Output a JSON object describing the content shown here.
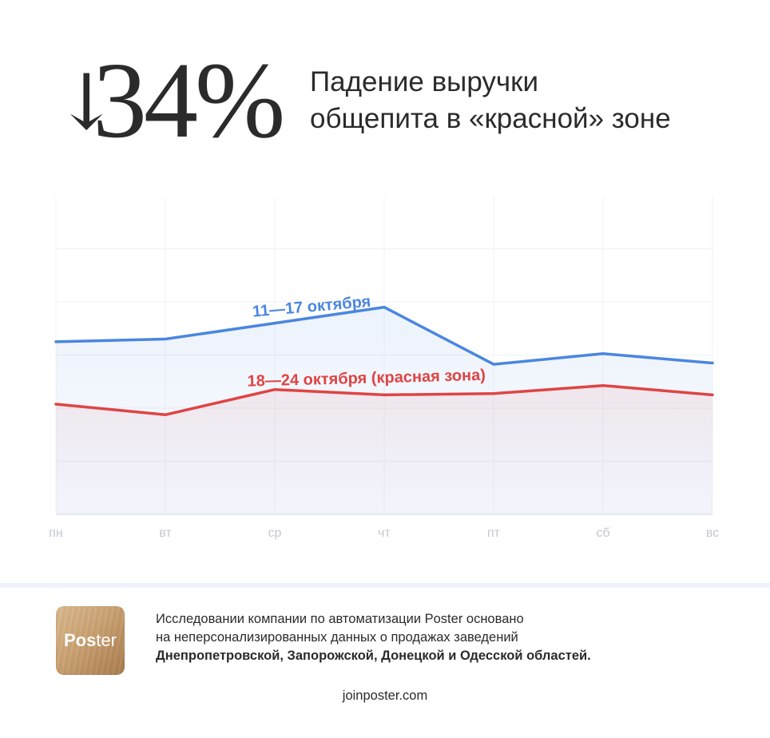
{
  "headline": {
    "arrow": "↓",
    "value": "34%",
    "title_line1": "Падение выручки",
    "title_line2": "общепита в «красной» зоне"
  },
  "chart_data": {
    "type": "line",
    "categories": [
      "пн",
      "вт",
      "ср",
      "чт",
      "пт",
      "сб",
      "вс"
    ],
    "series": [
      {
        "name": "11—17 октября",
        "color": "#4a86e0",
        "values": [
          50,
          52,
          64,
          76,
          33,
          41,
          34
        ]
      },
      {
        "name": "18—24 октября (красная зона)",
        "color": "#df4444",
        "values": [
          3,
          -5,
          14,
          10,
          11,
          17,
          10
        ]
      }
    ],
    "ylim": [
      -80,
      160
    ],
    "grid": true,
    "legend": "inline labels"
  },
  "footer": {
    "logo_text_bold": "Pos",
    "logo_text_light": "ter",
    "note_line1": "Исследовании компании по автоматизации Poster основано",
    "note_line2": "на неперсонализированных данных о продажах заведений",
    "note_line3": "Днепропетровской, Запорожской, Донецкой и Одесской областей.",
    "site": "joinposter.com"
  }
}
